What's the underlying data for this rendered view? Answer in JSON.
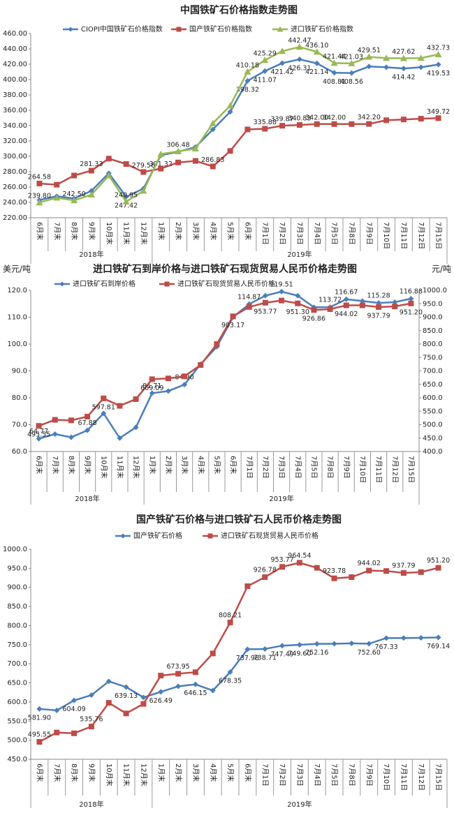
{
  "chart_data": [
    {
      "type": "line",
      "title": "中国铁矿石价格指数走势图",
      "categories": [
        "6月末",
        "7月末",
        "8月末",
        "9月末",
        "10月末",
        "11月末",
        "12月末",
        "1月末",
        "2月末",
        "3月末",
        "4月末",
        "5月末",
        "6月末",
        "7月1日",
        "7月2日",
        "7月3日",
        "7月4日",
        "7月5日",
        "7月8日",
        "7月9日",
        "7月10日",
        "7月11日",
        "7月12日",
        "7月15日"
      ],
      "x_groups": [
        "2018年",
        "2019年"
      ],
      "ylim": [
        220,
        460
      ],
      "yticks": [
        {
          "value": 220,
          "label": "220.00"
        },
        {
          "value": 240,
          "label": "240.00"
        },
        {
          "value": 260,
          "label": "260.00"
        },
        {
          "value": 280,
          "label": "280.00"
        },
        {
          "value": 300,
          "label": "300.00"
        },
        {
          "value": 320,
          "label": "320.00"
        },
        {
          "value": 340,
          "label": "340.00"
        },
        {
          "value": 360,
          "label": "360.00"
        },
        {
          "value": 380,
          "label": "380.00"
        },
        {
          "value": 400,
          "label": "400.00"
        },
        {
          "value": 420,
          "label": "420.00"
        },
        {
          "value": 440,
          "label": "440.00"
        },
        {
          "value": 460,
          "label": "460.00"
        }
      ],
      "series": [
        {
          "name": "CIOPI中国铁矿石价格指数",
          "color": "#4a7ebb",
          "marker": "diamond",
          "values": [
            243,
            248,
            245,
            255,
            278,
            247.42,
            258,
            301.32,
            306,
            312,
            335,
            358,
            398.32,
            411.07,
            421.42,
            426.31,
            421.14,
            408.81,
            408.56,
            417,
            416,
            414.42,
            416,
            419.53
          ],
          "value_labels": [
            null,
            null,
            null,
            null,
            null,
            "247.42",
            null,
            "301.32",
            null,
            null,
            null,
            null,
            "398.32",
            "411.07",
            "421.42",
            "426.31",
            "421.14",
            "408.81",
            "408.56",
            null,
            null,
            "414.42",
            null,
            "419.53"
          ]
        },
        {
          "name": "国产铁矿石价格指数",
          "color": "#be4b48",
          "marker": "square",
          "values": [
            264.58,
            263,
            275,
            281.33,
            297,
            290,
            279.56,
            284,
            292,
            294,
            286.83,
            307,
            335,
            335.88,
            339.87,
            340.83,
            342,
            342,
            342,
            342.2,
            347,
            348,
            349,
            349.72
          ],
          "value_labels": [
            "264.58",
            null,
            null,
            "281.33",
            null,
            null,
            "279.56",
            null,
            null,
            null,
            "286.83",
            null,
            null,
            "335.88",
            "339.87",
            "340.83",
            "342.00",
            "342.00",
            null,
            "342.20",
            null,
            null,
            null,
            "349.72"
          ]
        },
        {
          "name": "进口铁矿石价格指数",
          "color": "#98b954",
          "marker": "triangle",
          "values": [
            239.8,
            246,
            242.5,
            250,
            275,
            240.95,
            255,
            303,
            306.48,
            310,
            343,
            366,
            410.18,
            425.29,
            437,
            442.47,
            436.1,
            421.44,
            421.03,
            429.51,
            428,
            427.62,
            428,
            432.73
          ],
          "value_labels": [
            "239.80",
            null,
            "242.50",
            null,
            null,
            "240.95",
            null,
            null,
            "306.48",
            null,
            null,
            null,
            "410.18",
            "425.29",
            null,
            "442.47",
            "436.10",
            "421.44",
            "421.03",
            "429.51",
            null,
            "427.62",
            null,
            "432.73"
          ]
        }
      ]
    },
    {
      "type": "line",
      "title": "进口铁矿石到岸价格与进口铁矿石现货贸易人民币价格走势图",
      "y_label": "美元/吨",
      "y2_label": "元/吨",
      "categories": [
        "6月末",
        "7月末",
        "8月末",
        "9月末",
        "10月末",
        "11月末",
        "12月末",
        "1月末",
        "2月末",
        "3月末",
        "4月末",
        "5月末",
        "6月末",
        "7月1日",
        "7月2日",
        "7月3日",
        "7月4日",
        "7月5日",
        "7月8日",
        "7月9日",
        "7月10日",
        "7月11日",
        "7月12日",
        "7月15日"
      ],
      "x_groups": [
        "2018年",
        "2019年"
      ],
      "ylim": [
        60,
        120
      ],
      "yticks": [
        {
          "value": 60,
          "label": "60.0"
        },
        {
          "value": 70,
          "label": "70.0"
        },
        {
          "value": 80,
          "label": "80.0"
        },
        {
          "value": 90,
          "label": "90.0"
        },
        {
          "value": 100,
          "label": "100.0"
        },
        {
          "value": 110,
          "label": "110.0"
        },
        {
          "value": 120,
          "label": "120.0"
        }
      ],
      "y2lim": [
        400,
        1000
      ],
      "y2ticks": [
        {
          "value": 400,
          "label": "400.0"
        },
        {
          "value": 450,
          "label": "450.0"
        },
        {
          "value": 500,
          "label": "500.0"
        },
        {
          "value": 550,
          "label": "550.0"
        },
        {
          "value": 600,
          "label": "600.0"
        },
        {
          "value": 650,
          "label": "650.0"
        },
        {
          "value": 700,
          "label": "700.0"
        },
        {
          "value": 750,
          "label": "750.0"
        },
        {
          "value": 800,
          "label": "800.0"
        },
        {
          "value": 850,
          "label": "850.0"
        },
        {
          "value": 900,
          "label": "900.0"
        },
        {
          "value": 950,
          "label": "950.0"
        },
        {
          "value": 1000,
          "label": "1000.0"
        }
      ],
      "series": [
        {
          "name": "进口铁矿石到岸价格",
          "color": "#4a7ebb",
          "marker": "diamond",
          "values": [
            64.77,
            66.5,
            65.3,
            67.88,
            74.2,
            65,
            69,
            81.71,
            82.5,
            84.9,
            92.5,
            99,
            110,
            114.87,
            118,
            119.51,
            118,
            113.7,
            113.72,
            116.67,
            116,
            115.28,
            115.6,
            116.88
          ],
          "value_labels": [
            "64.77",
            null,
            null,
            "67.88",
            null,
            null,
            null,
            "81.71",
            null,
            "84.90",
            null,
            null,
            null,
            "114.87",
            null,
            "119.51",
            null,
            null,
            "113.72",
            "116.67",
            null,
            "115.28",
            null,
            "116.88"
          ]
        },
        {
          "name": "进口铁矿石现货贸易人民币价格",
          "color": "#be4b48",
          "marker": "square",
          "axis": "y2",
          "values": [
            495.55,
            518,
            516,
            530,
            597.81,
            570,
            595,
            669.09,
            672,
            680,
            722,
            800,
            903.17,
            938,
            953.77,
            962,
            951.3,
            926.86,
            930,
            944.02,
            944,
            937.79,
            940,
            951.2
          ],
          "value_labels": [
            "495.55",
            null,
            null,
            null,
            "597.81",
            null,
            null,
            "669.09",
            null,
            null,
            null,
            null,
            "903.17",
            null,
            "953.77",
            null,
            "951.30",
            "926.86",
            null,
            "944.02",
            null,
            "937.79",
            null,
            "951.20"
          ]
        }
      ]
    },
    {
      "type": "line",
      "title": "国产铁矿石价格与进口铁矿石人民币价格走势图",
      "categories": [
        "6月末",
        "7月末",
        "8月末",
        "9月末",
        "10月末",
        "11月末",
        "12月末",
        "1月末",
        "2月末",
        "3月末",
        "4月末",
        "5月末",
        "6月末",
        "7月1日",
        "7月2日",
        "7月3日",
        "7月4日",
        "7月5日",
        "7月8日",
        "7月9日",
        "7月10日",
        "7月11日",
        "7月12日",
        "7月15日"
      ],
      "x_groups": [
        "2018年",
        "2019年"
      ],
      "ylim": [
        450,
        1000
      ],
      "yticks": [
        {
          "value": 450,
          "label": "450.0"
        },
        {
          "value": 500,
          "label": "500.0"
        },
        {
          "value": 550,
          "label": "550.0"
        },
        {
          "value": 600,
          "label": "600.0"
        },
        {
          "value": 650,
          "label": "650.0"
        },
        {
          "value": 700,
          "label": "700.0"
        },
        {
          "value": 750,
          "label": "750.0"
        },
        {
          "value": 800,
          "label": "800.0"
        },
        {
          "value": 850,
          "label": "850.0"
        },
        {
          "value": 900,
          "label": "900.0"
        },
        {
          "value": 950,
          "label": "950.0"
        },
        {
          "value": 1000,
          "label": "1000.0"
        }
      ],
      "series": [
        {
          "name": "国产铁矿石价格",
          "color": "#4a7ebb",
          "marker": "diamond",
          "values": [
            581.9,
            578,
            604.09,
            618,
            654,
            639.13,
            612,
            626.49,
            641,
            646.15,
            630,
            678.35,
            737.98,
            738.71,
            747.49,
            749.6,
            752.16,
            752.5,
            753.5,
            752.6,
            767.33,
            767.5,
            768,
            769.14
          ],
          "value_labels": [
            "581.90",
            null,
            "604.09",
            null,
            null,
            "639.13",
            null,
            "626.49",
            null,
            "646.15",
            null,
            "678.35",
            "737.98",
            "738.71",
            "747.49",
            "749.60",
            "752.16",
            null,
            null,
            "752.60",
            "767.33",
            null,
            null,
            "769.14"
          ]
        },
        {
          "name": "进口铁矿石现货贸易人民币价格",
          "color": "#be4b48",
          "marker": "square",
          "values": [
            495.55,
            520,
            518,
            535.76,
            597.81,
            570,
            595,
            669.09,
            673.95,
            678,
            727,
            808.21,
            903.17,
            926.78,
            953.77,
            964.54,
            951.3,
            923.78,
            926.86,
            944.02,
            943,
            937.79,
            940,
            951.2
          ],
          "value_labels": [
            "495.55",
            null,
            null,
            "535.76",
            null,
            null,
            null,
            null,
            "673.95",
            null,
            null,
            "808.21",
            null,
            "926.78",
            "953.77",
            "964.54",
            null,
            "923.78",
            null,
            "944.02",
            null,
            "937.79",
            null,
            "951.20"
          ]
        }
      ]
    }
  ]
}
